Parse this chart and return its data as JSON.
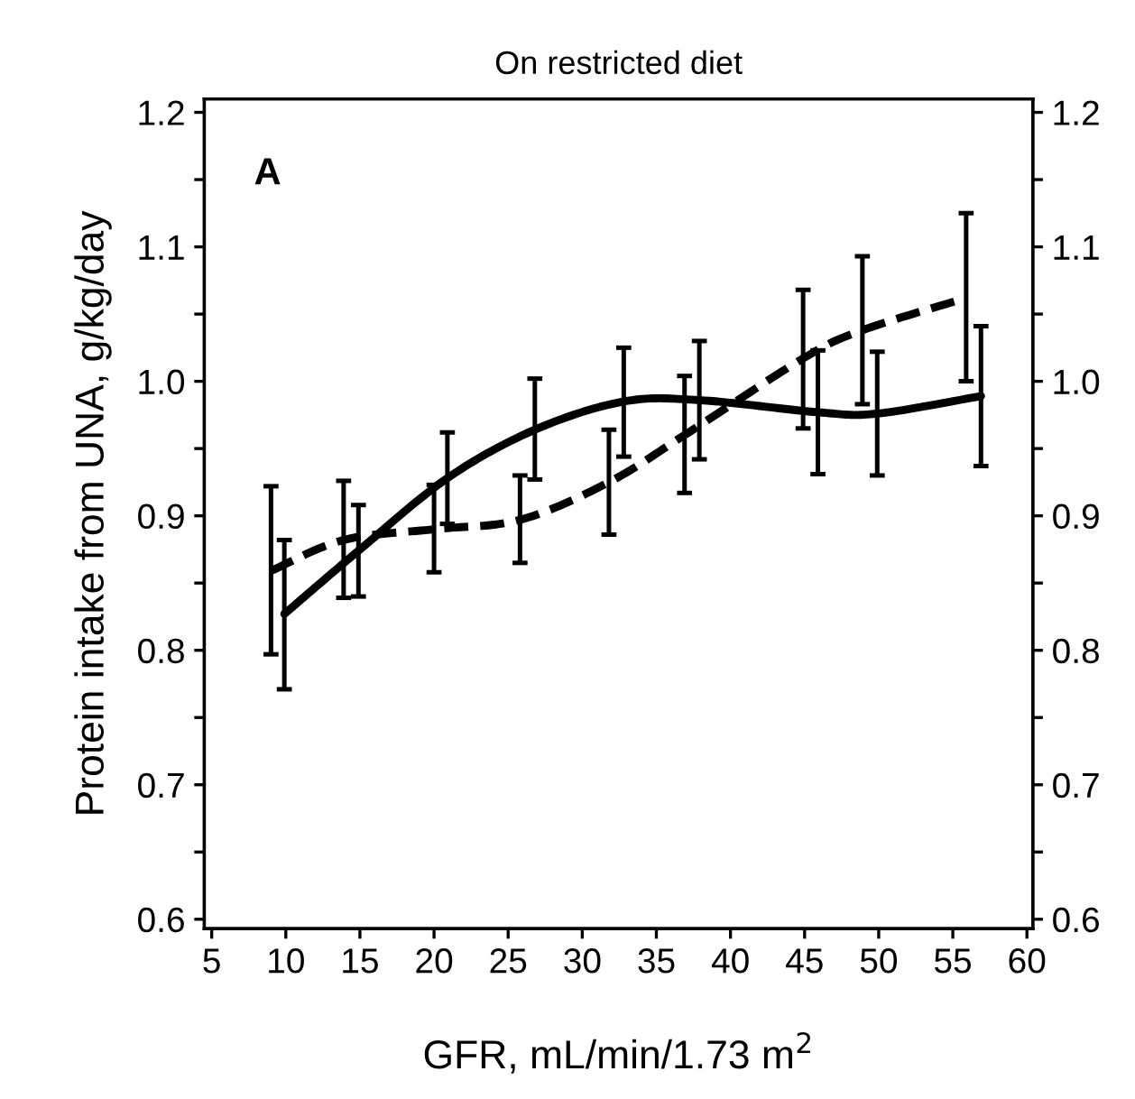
{
  "chart_data": {
    "type": "line",
    "title": "On restricted diet",
    "xlabel": "GFR, mL/min/1.73 m$^{2}$",
    "ylabel": "Protein intake from UNA, g/kg/day",
    "annotations": [
      "A"
    ],
    "series": [
      {
        "color": "#000000",
        "line_style": "solid",
        "x": [
          9.9,
          14.9,
          20.9,
          26.8,
          32.8,
          37.9,
          45.9,
          49.9,
          56.9
        ],
        "values": [
          0.827,
          0.874,
          0.928,
          0.964,
          0.985,
          0.986,
          0.977,
          0.976,
          0.989
        ],
        "errors": [
          [
            0.771,
            0.882
          ],
          [
            0.84,
            0.908
          ],
          [
            0.894,
            0.962
          ],
          [
            0.927,
            1.002
          ],
          [
            0.944,
            1.025
          ],
          [
            0.942,
            1.03
          ],
          [
            0.931,
            1.023
          ],
          [
            0.93,
            1.022
          ],
          [
            0.937,
            1.041
          ]
        ]
      },
      {
        "color": "#000000",
        "line_style": "dashed",
        "x": [
          9.0,
          13.9,
          20.0,
          25.8,
          31.8,
          36.9,
          44.9,
          48.9,
          55.9
        ],
        "values": [
          0.859,
          0.882,
          0.89,
          0.897,
          0.925,
          0.96,
          1.017,
          1.038,
          1.062
        ],
        "errors": [
          [
            0.797,
            0.922
          ],
          [
            0.839,
            0.926
          ],
          [
            0.858,
            0.923
          ],
          [
            0.865,
            0.93
          ],
          [
            0.886,
            0.964
          ],
          [
            0.917,
            1.004
          ],
          [
            0.965,
            1.068
          ],
          [
            0.983,
            1.093
          ],
          [
            1.0,
            1.125
          ]
        ]
      }
    ],
    "xlim": [
      4.5,
      60.4
    ],
    "xticks": [
      5,
      10,
      15,
      20,
      25,
      30,
      35,
      40,
      45,
      50,
      55,
      60
    ],
    "ylim": [
      0.593,
      1.21
    ],
    "yticks": [
      0.6,
      {
        "value": 0.65,
        "label": null
      },
      0.7,
      {
        "value": 0.75,
        "label": null
      },
      0.8,
      {
        "value": 0.85,
        "label": null
      },
      0.9,
      {
        "value": 0.95,
        "label": null
      },
      {
        "value": 1.0,
        "label": "1.0"
      },
      {
        "value": 1.05,
        "label": null
      },
      1.1,
      {
        "value": 1.15,
        "label": null
      },
      1.2
    ],
    "y2lim": [
      0.593,
      1.21
    ],
    "y2ticks": [
      0.6,
      {
        "value": 0.65,
        "label": null
      },
      0.7,
      {
        "value": 0.75,
        "label": null
      },
      0.8,
      {
        "value": 0.85,
        "label": null
      },
      0.9,
      {
        "value": 0.95,
        "label": null
      },
      {
        "value": 1.0,
        "label": "1.0"
      },
      {
        "value": 1.05,
        "label": null
      },
      1.1,
      {
        "value": 1.15,
        "label": null
      },
      1.2
    ],
    "grid": false,
    "marker": "none"
  }
}
